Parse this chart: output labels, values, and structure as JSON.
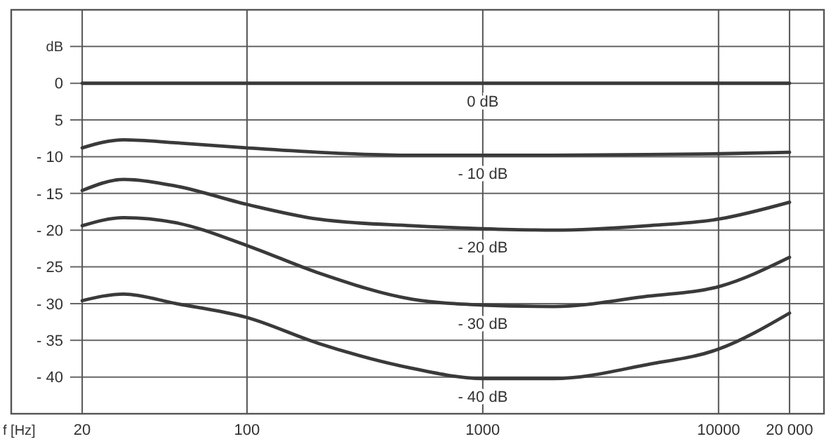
{
  "chart_data": {
    "type": "line",
    "xlabel": "f [Hz]",
    "ylabel": "dB",
    "x": [
      20,
      30,
      50,
      100,
      200,
      500,
      1000,
      2000,
      5000,
      10000,
      20000
    ],
    "series": [
      {
        "name": "0 dB",
        "color": "#3a3a3a",
        "values": [
          0,
          0,
          0,
          0,
          0,
          0,
          0,
          0,
          0,
          0,
          0
        ]
      },
      {
        "name": "- 10 dB",
        "color": "#3a3a3a",
        "values": [
          -8.8,
          -7.7,
          -8.1,
          -8.8,
          -9.4,
          -9.8,
          -9.8,
          -9.8,
          -9.7,
          -9.6,
          -9.4
        ]
      },
      {
        "name": "- 20 dB",
        "color": "#3a3a3a",
        "values": [
          -14.6,
          -13.1,
          -14.0,
          -16.5,
          -18.5,
          -19.4,
          -19.8,
          -20.0,
          -19.4,
          -18.5,
          -16.2
        ]
      },
      {
        "name": "- 30 dB",
        "color": "#3a3a3a",
        "values": [
          -19.4,
          -18.3,
          -19.0,
          -22.1,
          -25.8,
          -29.4,
          -30.2,
          -30.4,
          -29.0,
          -27.7,
          -23.7
        ]
      },
      {
        "name": "- 40 dB",
        "color": "#3a3a3a",
        "values": [
          -29.6,
          -28.7,
          -30.0,
          -31.9,
          -35.4,
          -38.8,
          -40.2,
          -40.2,
          -38.3,
          -36.2,
          -31.3
        ]
      }
    ],
    "log": "x",
    "xlim": [
      10,
      28000
    ],
    "xticks": [
      20,
      100,
      1000,
      10000,
      {
        "value": 20000,
        "label": "20 000"
      }
    ],
    "ylim": [
      -45,
      10
    ],
    "yticks": [
      {
        "value": 5,
        "label": null
      },
      0,
      {
        "value": -5,
        "label": "5"
      },
      {
        "value": -10,
        "label": "- 10"
      },
      {
        "value": -15,
        "label": "- 15"
      },
      {
        "value": -20,
        "label": "- 20"
      },
      {
        "value": -25,
        "label": "- 25"
      },
      {
        "value": -30,
        "label": "- 30"
      },
      {
        "value": -35,
        "label": "- 35"
      },
      {
        "value": -40,
        "label": "- 40"
      }
    ],
    "grid": true,
    "legend": false,
    "marker": "none",
    "line_style": "solid"
  }
}
